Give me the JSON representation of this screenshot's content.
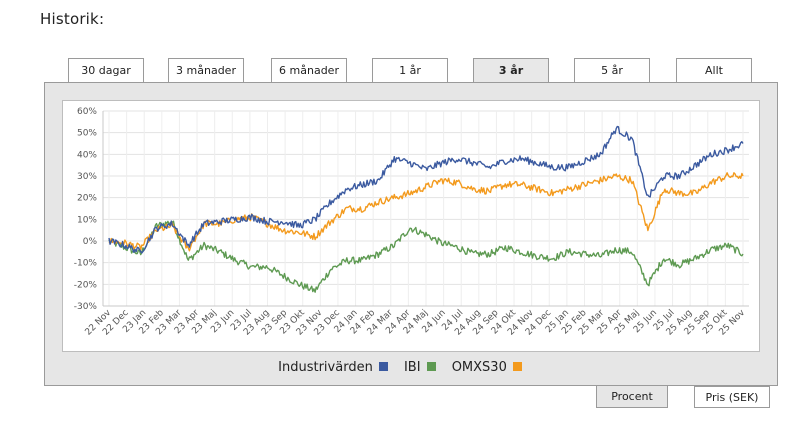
{
  "title": "Historik:",
  "tabs": [
    {
      "label": "30 dagar",
      "active": false
    },
    {
      "label": "3 månader",
      "active": false
    },
    {
      "label": "6 månader",
      "active": false
    },
    {
      "label": "1 år",
      "active": false
    },
    {
      "label": "3 år",
      "active": true
    },
    {
      "label": "5 år",
      "active": false
    },
    {
      "label": "Allt",
      "active": false
    }
  ],
  "mode_buttons": [
    {
      "label": "Procent",
      "active": true
    },
    {
      "label": "Pris (SEK)",
      "active": false
    }
  ],
  "chart_data": {
    "type": "line",
    "ylim": [
      -30,
      60
    ],
    "yticks": [
      -30,
      -20,
      -10,
      0,
      10,
      20,
      30,
      40,
      50,
      60
    ],
    "ytick_labels": [
      "-30%",
      "-20%",
      "-10%",
      "0%",
      "10%",
      "20%",
      "30%",
      "40%",
      "50%",
      "60%"
    ],
    "xtick_labels": [
      "22 Nov",
      "22 Dec",
      "23 Jan",
      "23 Feb",
      "23 Mar",
      "23 Apr",
      "23 Maj",
      "23 Jun",
      "23 Jul",
      "23 Aug",
      "23 Sep",
      "23 Okt",
      "23 Nov",
      "23 Dec",
      "24 Jan",
      "24 Feb",
      "24 Mar",
      "24 Apr",
      "24 Maj",
      "24 Jun",
      "24 Jul",
      "24 Aug",
      "24 Sep",
      "24 Okt",
      "24 Nov",
      "24 Dec",
      "25 Jan",
      "25 Feb",
      "25 Mar",
      "25 Apr",
      "25 Maj",
      "25 Jun",
      "25 Jul",
      "25 Aug",
      "25 Sep",
      "25 Okt",
      "25 Nov"
    ],
    "grid": true,
    "legend_position": "bottom",
    "series": [
      {
        "name": "Industrivärden",
        "color": "#3b5aa0",
        "values": [
          0,
          -2,
          -5,
          6,
          8,
          -2,
          8,
          9,
          10,
          11,
          9,
          9,
          7,
          10,
          18,
          24,
          26,
          28,
          38,
          36,
          33,
          36,
          38,
          36,
          34,
          37,
          38,
          36,
          34,
          34,
          37,
          40,
          52,
          47,
          20,
          30,
          30,
          35,
          40,
          42,
          45
        ]
      },
      {
        "name": "IBI",
        "color": "#5e9a52",
        "values": [
          0,
          -3,
          -6,
          7,
          9,
          -9,
          -2,
          -5,
          -9,
          -12,
          -12,
          -16,
          -20,
          -23,
          -13,
          -9,
          -9,
          -6,
          -2,
          6,
          3,
          -1,
          -3,
          -6,
          -6,
          -3,
          -5,
          -7,
          -8,
          -5,
          -6,
          -7,
          -4,
          -5,
          -20,
          -8,
          -11,
          -8,
          -4,
          -2,
          -6
        ]
      },
      {
        "name": "OMXS30",
        "color": "#f39a1d",
        "values": [
          0,
          -1,
          -3,
          5,
          7,
          -4,
          8,
          8,
          10,
          11,
          8,
          5,
          4,
          2,
          9,
          15,
          15,
          18,
          20,
          22,
          25,
          28,
          27,
          24,
          23,
          26,
          26,
          24,
          22,
          24,
          26,
          28,
          30,
          28,
          5,
          24,
          22,
          22,
          27,
          30,
          30
        ]
      }
    ]
  }
}
